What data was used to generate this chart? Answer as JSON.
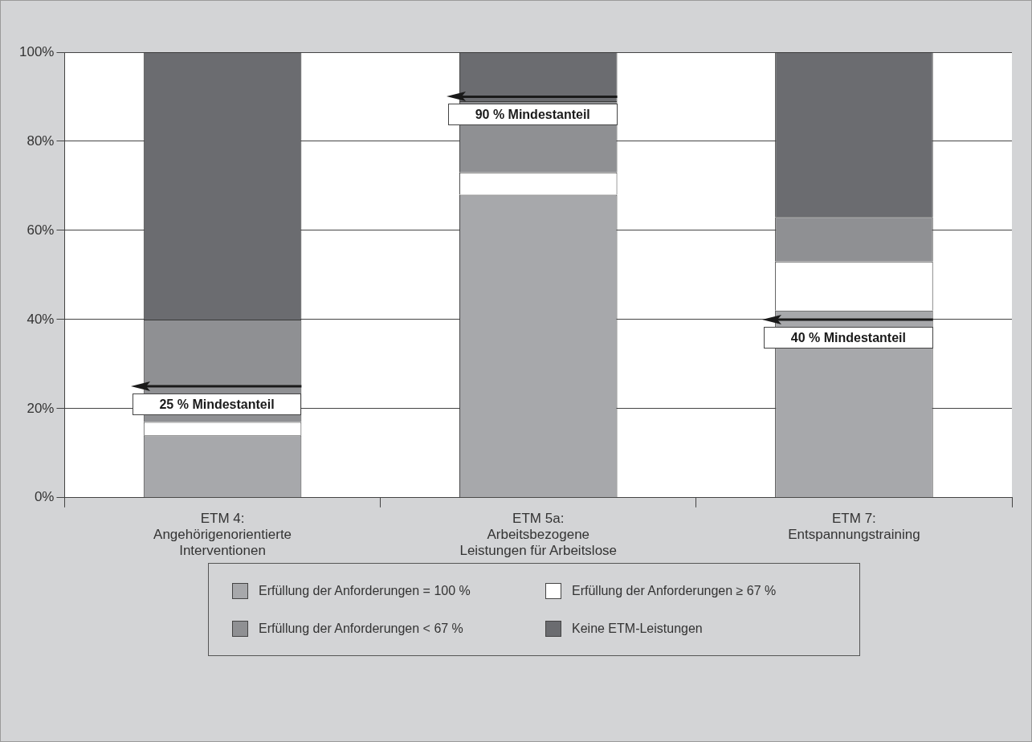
{
  "chart_data": {
    "type": "bar",
    "stacked": true,
    "categories": [
      "ETM 4:\nAngehörigenorientierte\nInterventionen",
      "ETM 5a:\nArbeitsbezogene\nLeistungen für Arbeitslose",
      "ETM 7:\nEntspannungstraining"
    ],
    "series": [
      {
        "name": "Erfüllung der Anforderungen = 100 %",
        "color": "#a7a8ab",
        "values": [
          14,
          68,
          42
        ]
      },
      {
        "name": "Erfüllung der Anforderungen ≥ 67 %",
        "color": "#ffffff",
        "values": [
          3,
          5,
          11
        ]
      },
      {
        "name": "Erfüllung der Anforderungen < 67 %",
        "color": "#8f9093",
        "values": [
          23,
          16,
          10
        ]
      },
      {
        "name": "Keine ETM-Leistungen",
        "color": "#6b6c70",
        "values": [
          60,
          11,
          37
        ]
      }
    ],
    "ylim": [
      0,
      100
    ],
    "yticks": [
      {
        "value": 0,
        "label": "0%"
      },
      {
        "value": 20,
        "label": "20%"
      },
      {
        "value": 40,
        "label": "40%"
      },
      {
        "value": 60,
        "label": "60%"
      },
      {
        "value": 80,
        "label": "80%"
      },
      {
        "value": 100,
        "label": "100%"
      }
    ],
    "grid": "y",
    "legend": "bottom",
    "ref_lines": [
      {
        "axis": "y",
        "value": 25,
        "label": "25 % Mindestanteil",
        "color": "#1a1a1a"
      },
      {
        "axis": "y",
        "value": 90,
        "label": "90 % Mindestanteil",
        "color": "#1a1a1a"
      },
      {
        "axis": "y",
        "value": 40,
        "label": "40 % Mindestanteil",
        "color": "#1a1a1a"
      }
    ]
  }
}
